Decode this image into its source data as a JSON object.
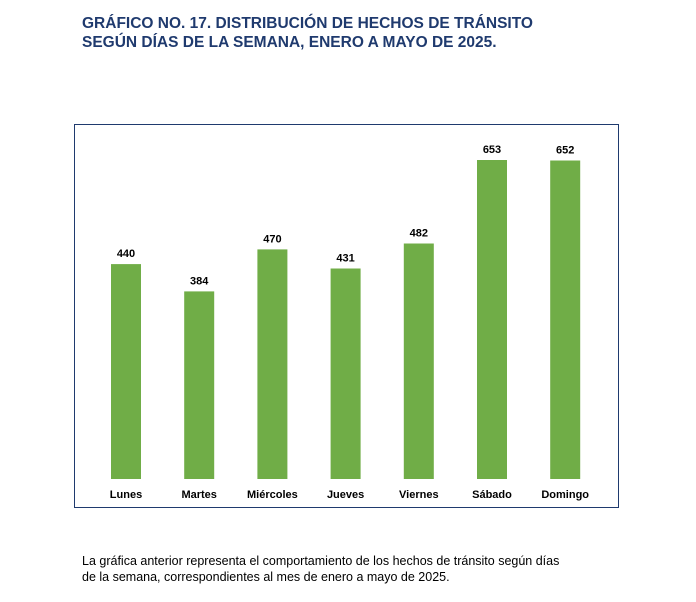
{
  "title": {
    "line1": "GRÁFICO NO. 17. DISTRIBUCIÓN DE HECHOS DE TRÁNSITO",
    "line2": "SEGÚN DÍAS DE LA SEMANA, ENERO A MAYO DE 2025."
  },
  "caption": {
    "line1": "La gráfica anterior representa el comportamiento de los hechos de tránsito según días",
    "line2": "de la semana, correspondientes al mes de enero a mayo de 2025."
  },
  "chart_data": {
    "type": "bar",
    "categories": [
      "Lunes",
      "Martes",
      "Miércoles",
      "Jueves",
      "Viernes",
      "Sábado",
      "Domingo"
    ],
    "values": [
      440,
      384,
      470,
      431,
      482,
      653,
      652
    ],
    "title": "GRÁFICO NO. 17. DISTRIBUCIÓN DE HECHOS DE TRÁNSITO SEGÚN DÍAS DE LA SEMANA, ENERO A MAYO DE 2025.",
    "xlabel": "",
    "ylabel": "",
    "data_labels": true,
    "grid": false,
    "legend": "none",
    "ylim": [
      0,
      653
    ],
    "bar_color": "#70ad47",
    "frame_color": "#1f3a6e"
  }
}
